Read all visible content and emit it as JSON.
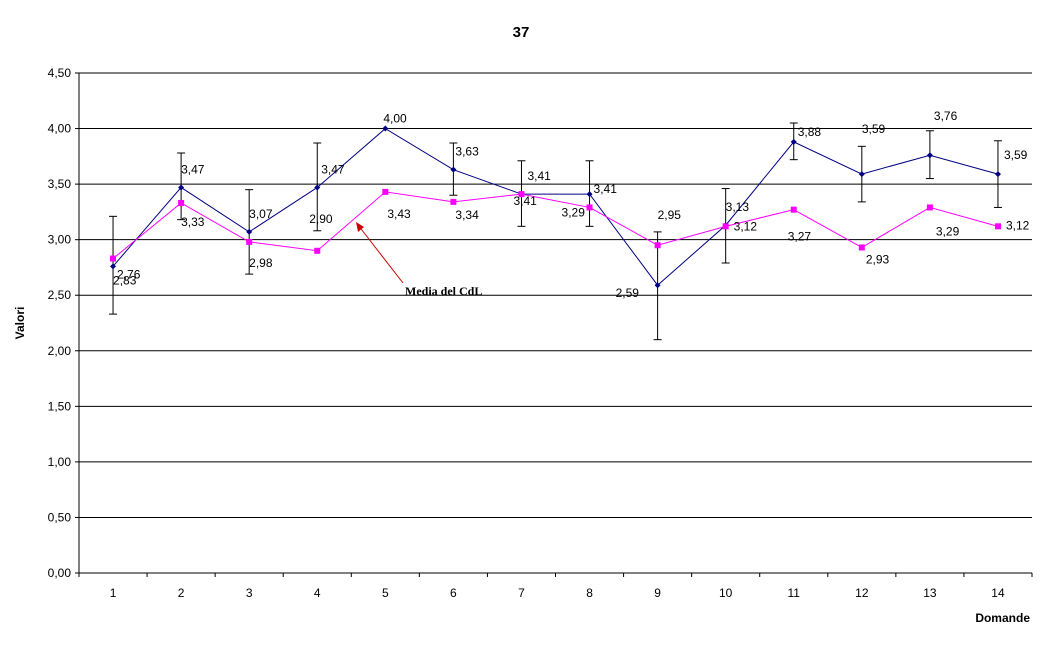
{
  "chart_data": {
    "type": "line",
    "title": "37",
    "xlabel": "Domande",
    "ylabel": "Valori",
    "ylim": [
      0,
      4.5
    ],
    "y_ticks": [
      "0,00",
      "0,50",
      "1,00",
      "1,50",
      "2,00",
      "2,50",
      "3,00",
      "3,50",
      "4,00",
      "4,50"
    ],
    "y_tick_values": [
      0,
      0.5,
      1,
      1.5,
      2,
      2.5,
      3,
      3.5,
      4,
      4.5
    ],
    "categories": [
      "1",
      "2",
      "3",
      "4",
      "5",
      "6",
      "7",
      "8",
      "9",
      "10",
      "11",
      "12",
      "13",
      "14"
    ],
    "grid": true,
    "series": [
      {
        "values": [
          2.76,
          3.47,
          3.07,
          3.47,
          4.0,
          3.63,
          3.41,
          3.41,
          2.59,
          3.13,
          3.88,
          3.59,
          3.76,
          3.59
        ],
        "labels": [
          "2,76",
          "3,47",
          "3,07",
          "3,47",
          "4,00",
          "3,63",
          "3,41",
          "3,41",
          "2,59",
          "3,13",
          "3,88",
          "3,59",
          "3,76",
          "3,59"
        ],
        "error_low": [
          2.33,
          3.18,
          2.69,
          3.08,
          4.0,
          3.4,
          3.12,
          3.12,
          2.1,
          2.79,
          3.72,
          3.34,
          3.55,
          3.29
        ],
        "error_high": [
          3.21,
          3.78,
          3.45,
          3.87,
          4.0,
          3.87,
          3.71,
          3.71,
          3.07,
          3.46,
          4.05,
          3.84,
          3.98,
          3.89
        ],
        "color": "#000080"
      },
      {
        "name": "Media del CdL",
        "values": [
          2.83,
          3.33,
          2.98,
          2.9,
          3.43,
          3.34,
          3.41,
          3.29,
          2.95,
          3.12,
          3.27,
          2.93,
          3.29,
          3.12
        ],
        "labels": [
          "2,83",
          "3,33",
          "2,98",
          "2,90",
          "3,43",
          "3,34",
          "3,41",
          "3,29",
          "2,95",
          "3,12",
          "3,27",
          "2,93",
          "3,29",
          "3,12"
        ],
        "color": "#ff00ff"
      }
    ],
    "annotation": {
      "text": "Media del CdL",
      "arrow_color": "#cc0000"
    }
  }
}
